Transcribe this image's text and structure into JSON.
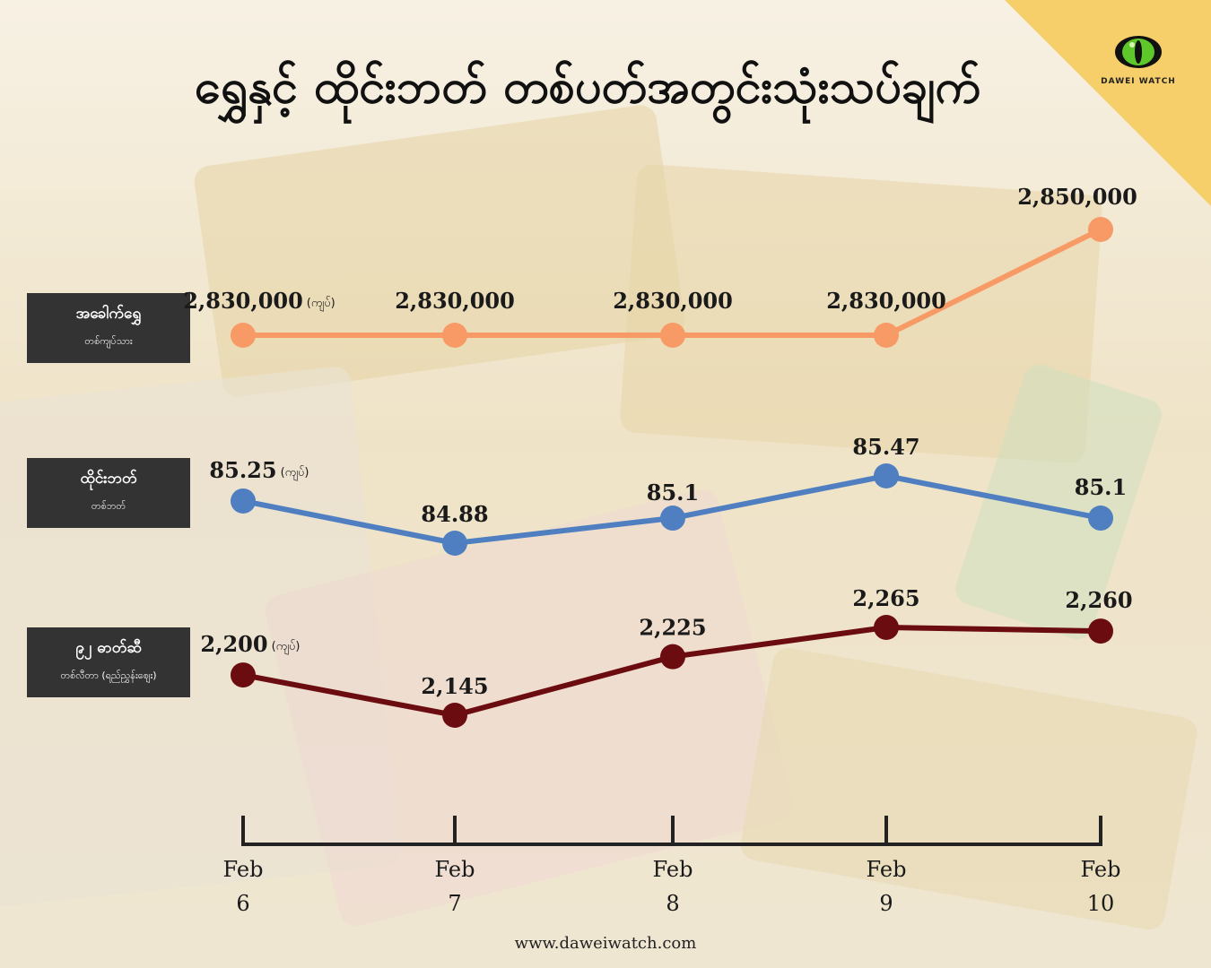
{
  "title": "ရွှေနှင့် ထိုင်းဘတ် တစ်ပတ်အတွင်းသုံးသပ်ချက်",
  "brand": "DAWEI WATCH",
  "footer": "www.daweiwatch.com",
  "unit_suffix": "(ကျပ်)",
  "colors": {
    "gold": "#f79a66",
    "baht": "#4f7fc0",
    "fuel": "#6b0d10",
    "label_bg": "#333333",
    "corner": "#f6cf6a"
  },
  "rows": [
    {
      "label": "အခေါက်ရွှေ",
      "unit": "တစ်ကျပ်သား"
    },
    {
      "label": "ထိုင်းဘတ်",
      "unit": "တစ်ဘတ်"
    },
    {
      "label": "၉၂ ဓာတ်ဆီ",
      "unit": "တစ်လီတာ (ရည်ညွှန်းဈေး)"
    }
  ],
  "chart_data": {
    "type": "line",
    "x": [
      "Feb 6",
      "Feb 7",
      "Feb 8",
      "Feb 9",
      "Feb 10"
    ],
    "x_month": "Feb",
    "x_day": [
      "6",
      "7",
      "8",
      "9",
      "10"
    ],
    "series": [
      {
        "name": "အခေါက်ရွှေ",
        "values": [
          2830000,
          2830000,
          2830000,
          2830000,
          2850000
        ],
        "labels": [
          "2,830,000",
          "2,830,000",
          "2,830,000",
          "2,830,000",
          "2,850,000"
        ],
        "color": "#f79a66"
      },
      {
        "name": "ထိုင်းဘတ်",
        "values": [
          85.25,
          84.88,
          85.1,
          85.47,
          85.1
        ],
        "labels": [
          "85.25",
          "84.88",
          "85.1",
          "85.47",
          "85.1"
        ],
        "color": "#4f7fc0"
      },
      {
        "name": "၉၂ ဓာတ်ဆီ",
        "values": [
          2200,
          2145,
          2225,
          2265,
          2260
        ],
        "labels": [
          "2,200",
          "2,145",
          "2,225",
          "2,265",
          "2,260"
        ],
        "color": "#6b0d10"
      }
    ]
  }
}
